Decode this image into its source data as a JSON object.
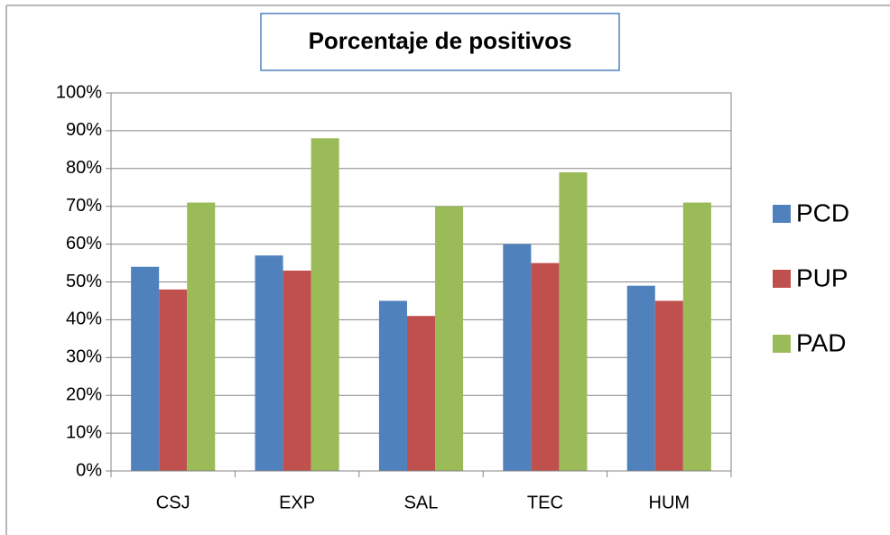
{
  "chart_data": {
    "type": "bar",
    "title": "Porcentaje de positivos",
    "categories": [
      "CSJ",
      "EXP",
      "SAL",
      "TEC",
      "HUM"
    ],
    "series": [
      {
        "name": "PCD",
        "color": "#4f81bd",
        "values": [
          54,
          57,
          45,
          60,
          49
        ]
      },
      {
        "name": "PUP",
        "color": "#c0504d",
        "values": [
          48,
          53,
          41,
          55,
          45
        ]
      },
      {
        "name": "PAD",
        "color": "#9bbb59",
        "values": [
          71,
          88,
          70,
          79,
          71
        ]
      }
    ],
    "ylim": [
      0,
      100
    ],
    "yticks": [
      {
        "value": 0,
        "label": "0%"
      },
      {
        "value": 10,
        "label": "10%"
      },
      {
        "value": 20,
        "label": "20%"
      },
      {
        "value": 30,
        "label": "30%"
      },
      {
        "value": 40,
        "label": "40%"
      },
      {
        "value": 50,
        "label": "50%"
      },
      {
        "value": 60,
        "label": "60%"
      },
      {
        "value": 70,
        "label": "70%"
      },
      {
        "value": 80,
        "label": "80%"
      },
      {
        "value": 90,
        "label": "90%"
      },
      {
        "value": 100,
        "label": "100%"
      }
    ],
    "grid": true,
    "legend": "right"
  }
}
